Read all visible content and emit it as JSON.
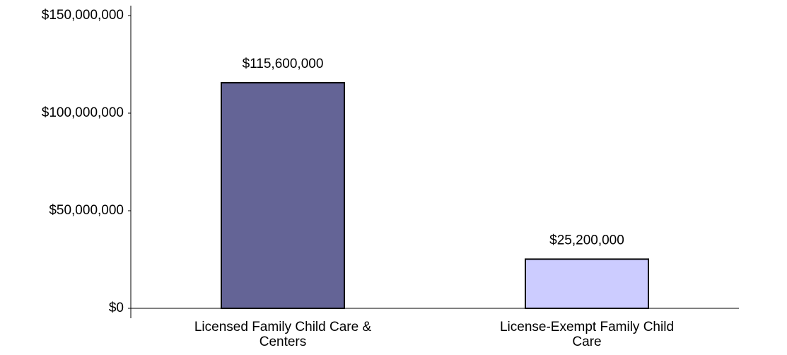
{
  "chart_data": {
    "type": "bar",
    "categories": [
      "Licensed Family Child Care & Centers",
      "License-Exempt Family Child Care"
    ],
    "values": [
      115600000,
      25200000
    ],
    "value_labels": [
      "$115,600,000",
      "$25,200,000"
    ],
    "colors": [
      "#646496",
      "#ccccff"
    ],
    "ylim": [
      0,
      150000000
    ],
    "yticks": [
      {
        "value": 0,
        "label": "$0"
      },
      {
        "value": 50000000,
        "label": "$50,000,000"
      },
      {
        "value": 100000000,
        "label": "$100,000,000"
      },
      {
        "value": 150000000,
        "label": "$150,000,000"
      }
    ],
    "grid": false
  }
}
